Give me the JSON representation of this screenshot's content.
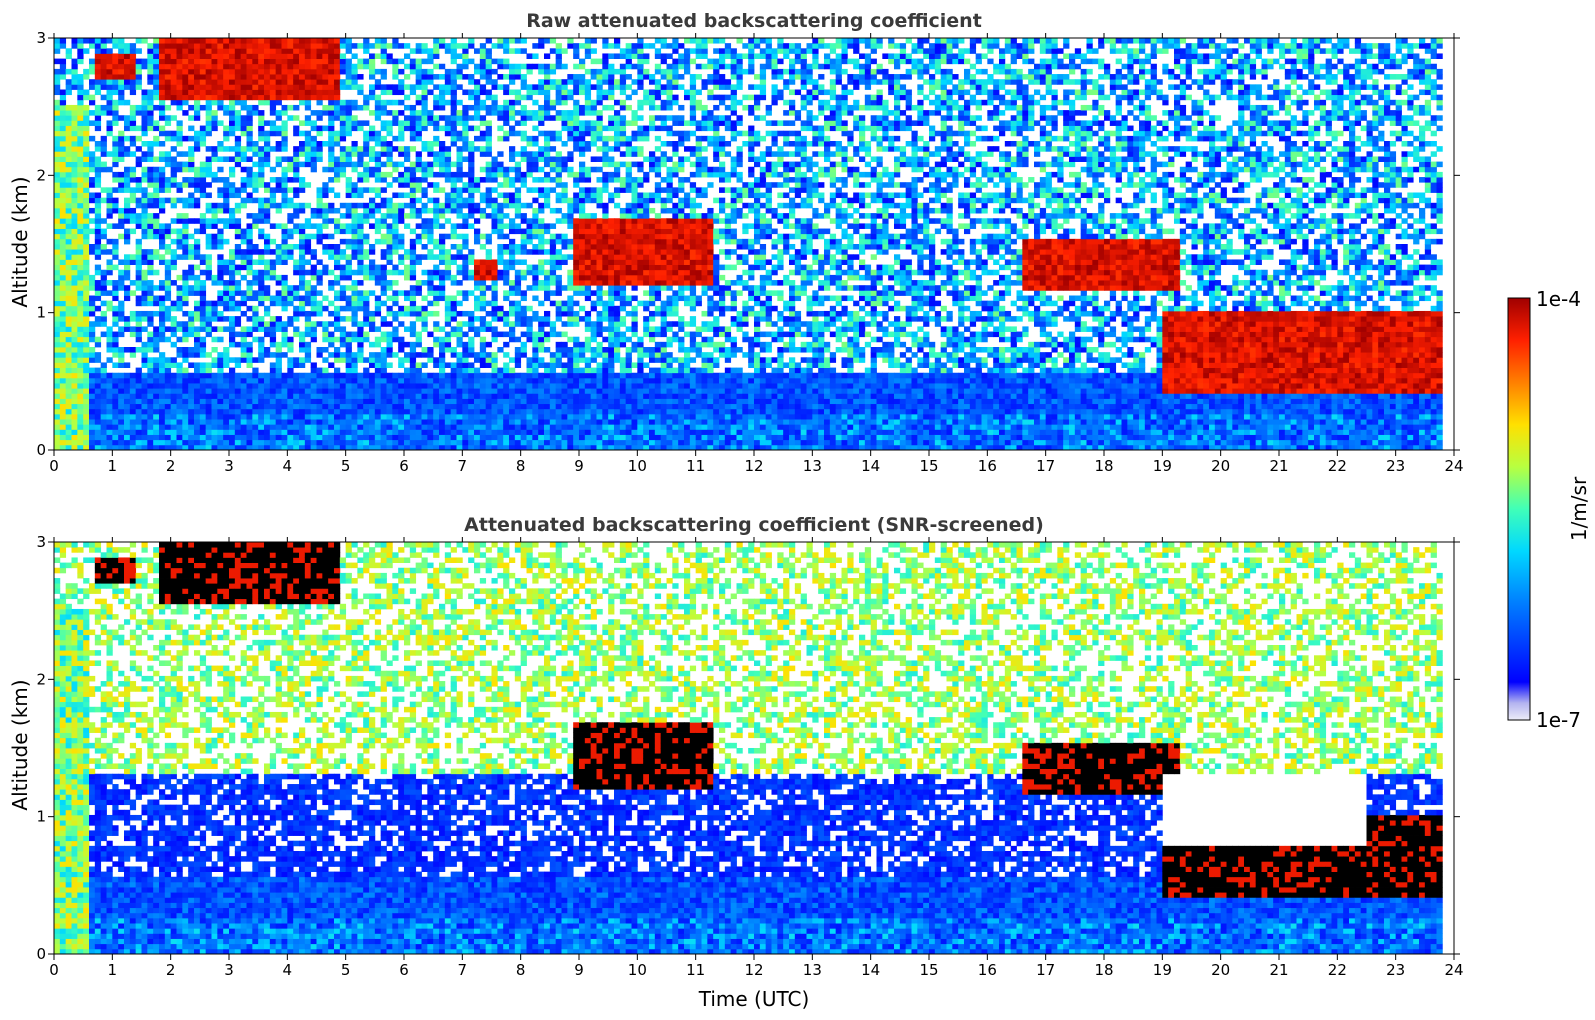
{
  "chart_data": [
    {
      "type": "heatmap",
      "title": "Raw attenuated backscattering coefficient",
      "xlabel": "",
      "ylabel": "Altitude (km)",
      "xlim": [
        0,
        24
      ],
      "ylim": [
        0,
        3
      ],
      "x_ticks": [
        "0",
        "1",
        "2",
        "3",
        "4",
        "5",
        "6",
        "7",
        "8",
        "9",
        "10",
        "11",
        "12",
        "13",
        "14",
        "15",
        "16",
        "17",
        "18",
        "19",
        "20",
        "21",
        "22",
        "23",
        "24"
      ],
      "y_ticks": [
        "0",
        "1",
        "2",
        "3"
      ],
      "grid": false,
      "features": [
        {
          "kind": "cloud_layer",
          "x": [
            0.7,
            1.4
          ],
          "y": [
            2.7,
            2.9
          ],
          "level": "high"
        },
        {
          "kind": "cloud_layer",
          "x": [
            1.8,
            4.9
          ],
          "y": [
            2.55,
            3.0
          ],
          "level": "high"
        },
        {
          "kind": "cloud_layer",
          "x": [
            7.2,
            7.6
          ],
          "y": [
            1.25,
            1.4
          ],
          "level": "high"
        },
        {
          "kind": "cloud_layer",
          "x": [
            8.9,
            11.3
          ],
          "y": [
            1.2,
            1.7
          ],
          "level": "high"
        },
        {
          "kind": "cloud_layer",
          "x": [
            16.6,
            19.3
          ],
          "y": [
            1.15,
            1.55
          ],
          "level": "high"
        },
        {
          "kind": "cloud_layer",
          "x": [
            19.0,
            23.8
          ],
          "y": [
            0.4,
            1.0
          ],
          "level": "high"
        },
        {
          "kind": "boundary_layer",
          "x": [
            0,
            24
          ],
          "y": [
            0,
            0.6
          ],
          "level": "low"
        }
      ]
    },
    {
      "type": "heatmap",
      "title": "Attenuated backscattering coefficient (SNR-screened)",
      "xlabel": "Time (UTC)",
      "ylabel": "Altitude (km)",
      "xlim": [
        0,
        24
      ],
      "ylim": [
        0,
        3
      ],
      "x_ticks": [
        "0",
        "1",
        "2",
        "3",
        "4",
        "5",
        "6",
        "7",
        "8",
        "9",
        "10",
        "11",
        "12",
        "13",
        "14",
        "15",
        "16",
        "17",
        "18",
        "19",
        "20",
        "21",
        "22",
        "23",
        "24"
      ],
      "y_ticks": [
        "0",
        "1",
        "2",
        "3"
      ],
      "grid": false,
      "features": [
        {
          "kind": "cloud_layer",
          "x": [
            0.7,
            1.4
          ],
          "y": [
            2.7,
            2.9
          ],
          "level": "saturated"
        },
        {
          "kind": "cloud_layer",
          "x": [
            1.8,
            4.9
          ],
          "y": [
            2.55,
            3.0
          ],
          "level": "saturated"
        },
        {
          "kind": "cloud_layer",
          "x": [
            8.9,
            11.3
          ],
          "y": [
            1.2,
            1.7
          ],
          "level": "saturated"
        },
        {
          "kind": "cloud_layer",
          "x": [
            16.6,
            19.3
          ],
          "y": [
            1.15,
            1.55
          ],
          "level": "saturated"
        },
        {
          "kind": "cloud_layer",
          "x": [
            19.0,
            23.8
          ],
          "y": [
            0.4,
            1.0
          ],
          "level": "saturated"
        },
        {
          "kind": "screened_region",
          "x": [
            19.0,
            22.5
          ],
          "y": [
            0.8,
            1.3
          ],
          "level": "none"
        }
      ]
    }
  ],
  "colorbar": {
    "label": "1/m/sr",
    "max_label": "1e-4",
    "min_label": "1e-7",
    "colormap": "jet",
    "colors": [
      "#e8e8f8",
      "#b8b8f0",
      "#0000ff",
      "#0080ff",
      "#00d8ff",
      "#40ffb8",
      "#b8ff40",
      "#ffe000",
      "#ff8000",
      "#ff2000",
      "#a00000"
    ]
  }
}
